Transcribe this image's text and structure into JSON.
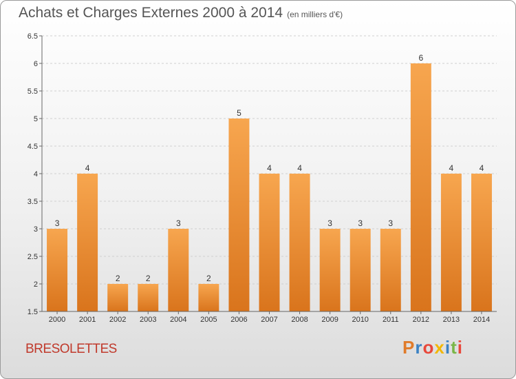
{
  "title": "Achats et Charges Externes 2000 à 2014",
  "subtitle": "(en milliers d'€)",
  "commune": "BRESOLETTES",
  "logo": {
    "text": "Proxiti",
    "colors": [
      "#e07b2a",
      "#3b82c4",
      "#e8483b",
      "#f2b705",
      "#3b82c4",
      "#7ab648",
      "#e8483b"
    ]
  },
  "colors": {
    "bar_top": "#f7a64f",
    "bar_bottom": "#d9741c",
    "title": "#555555",
    "commune": "#c0392b"
  },
  "chart_data": {
    "type": "bar",
    "title": "Achats et Charges Externes 2000 à 2014",
    "subtitle": "(en milliers d'€)",
    "categories": [
      "2000",
      "2001",
      "2002",
      "2003",
      "2004",
      "2005",
      "2006",
      "2007",
      "2008",
      "2009",
      "2010",
      "2011",
      "2012",
      "2013",
      "2014"
    ],
    "values": [
      3,
      4,
      2,
      2,
      3,
      2,
      5,
      4,
      4,
      3,
      3,
      3,
      6,
      4,
      4
    ],
    "value_labels": [
      "3",
      "4",
      "2",
      "2",
      "3",
      "2",
      "5",
      "4",
      "4",
      "3",
      "3",
      "3",
      "6",
      "4",
      "4"
    ],
    "ylim": [
      1.5,
      6.5
    ],
    "yticks": [
      1.5,
      2,
      2.5,
      3,
      3.5,
      4,
      4.5,
      5,
      5.5,
      6,
      6.5
    ],
    "ytick_labels": [
      "1.5",
      "2",
      "2.5",
      "3",
      "3.5",
      "4",
      "4.5",
      "5",
      "5.5",
      "6",
      "6.5"
    ],
    "grid": true,
    "xlabel": "",
    "ylabel": ""
  }
}
